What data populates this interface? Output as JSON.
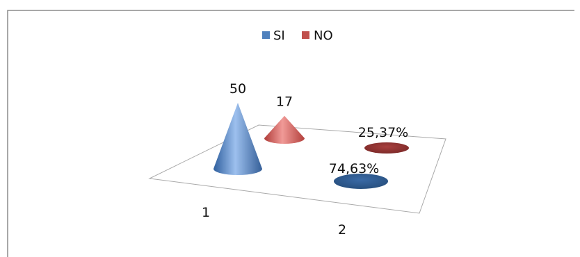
{
  "chart_data": {
    "type": "bar",
    "style": "3d-cone",
    "categories": [
      "1",
      "2"
    ],
    "series": [
      {
        "name": "SI",
        "values": [
          50,
          0.7463
        ],
        "labels": [
          "50",
          "74,63%"
        ],
        "color": "#4f81bd"
      },
      {
        "name": "NO",
        "values": [
          17,
          0.2537
        ],
        "labels": [
          "17",
          "25,37%"
        ],
        "color": "#c0504d"
      }
    ],
    "legend_position": "top",
    "gridlines": false,
    "title": "",
    "xlabel": "",
    "ylabel": ""
  }
}
